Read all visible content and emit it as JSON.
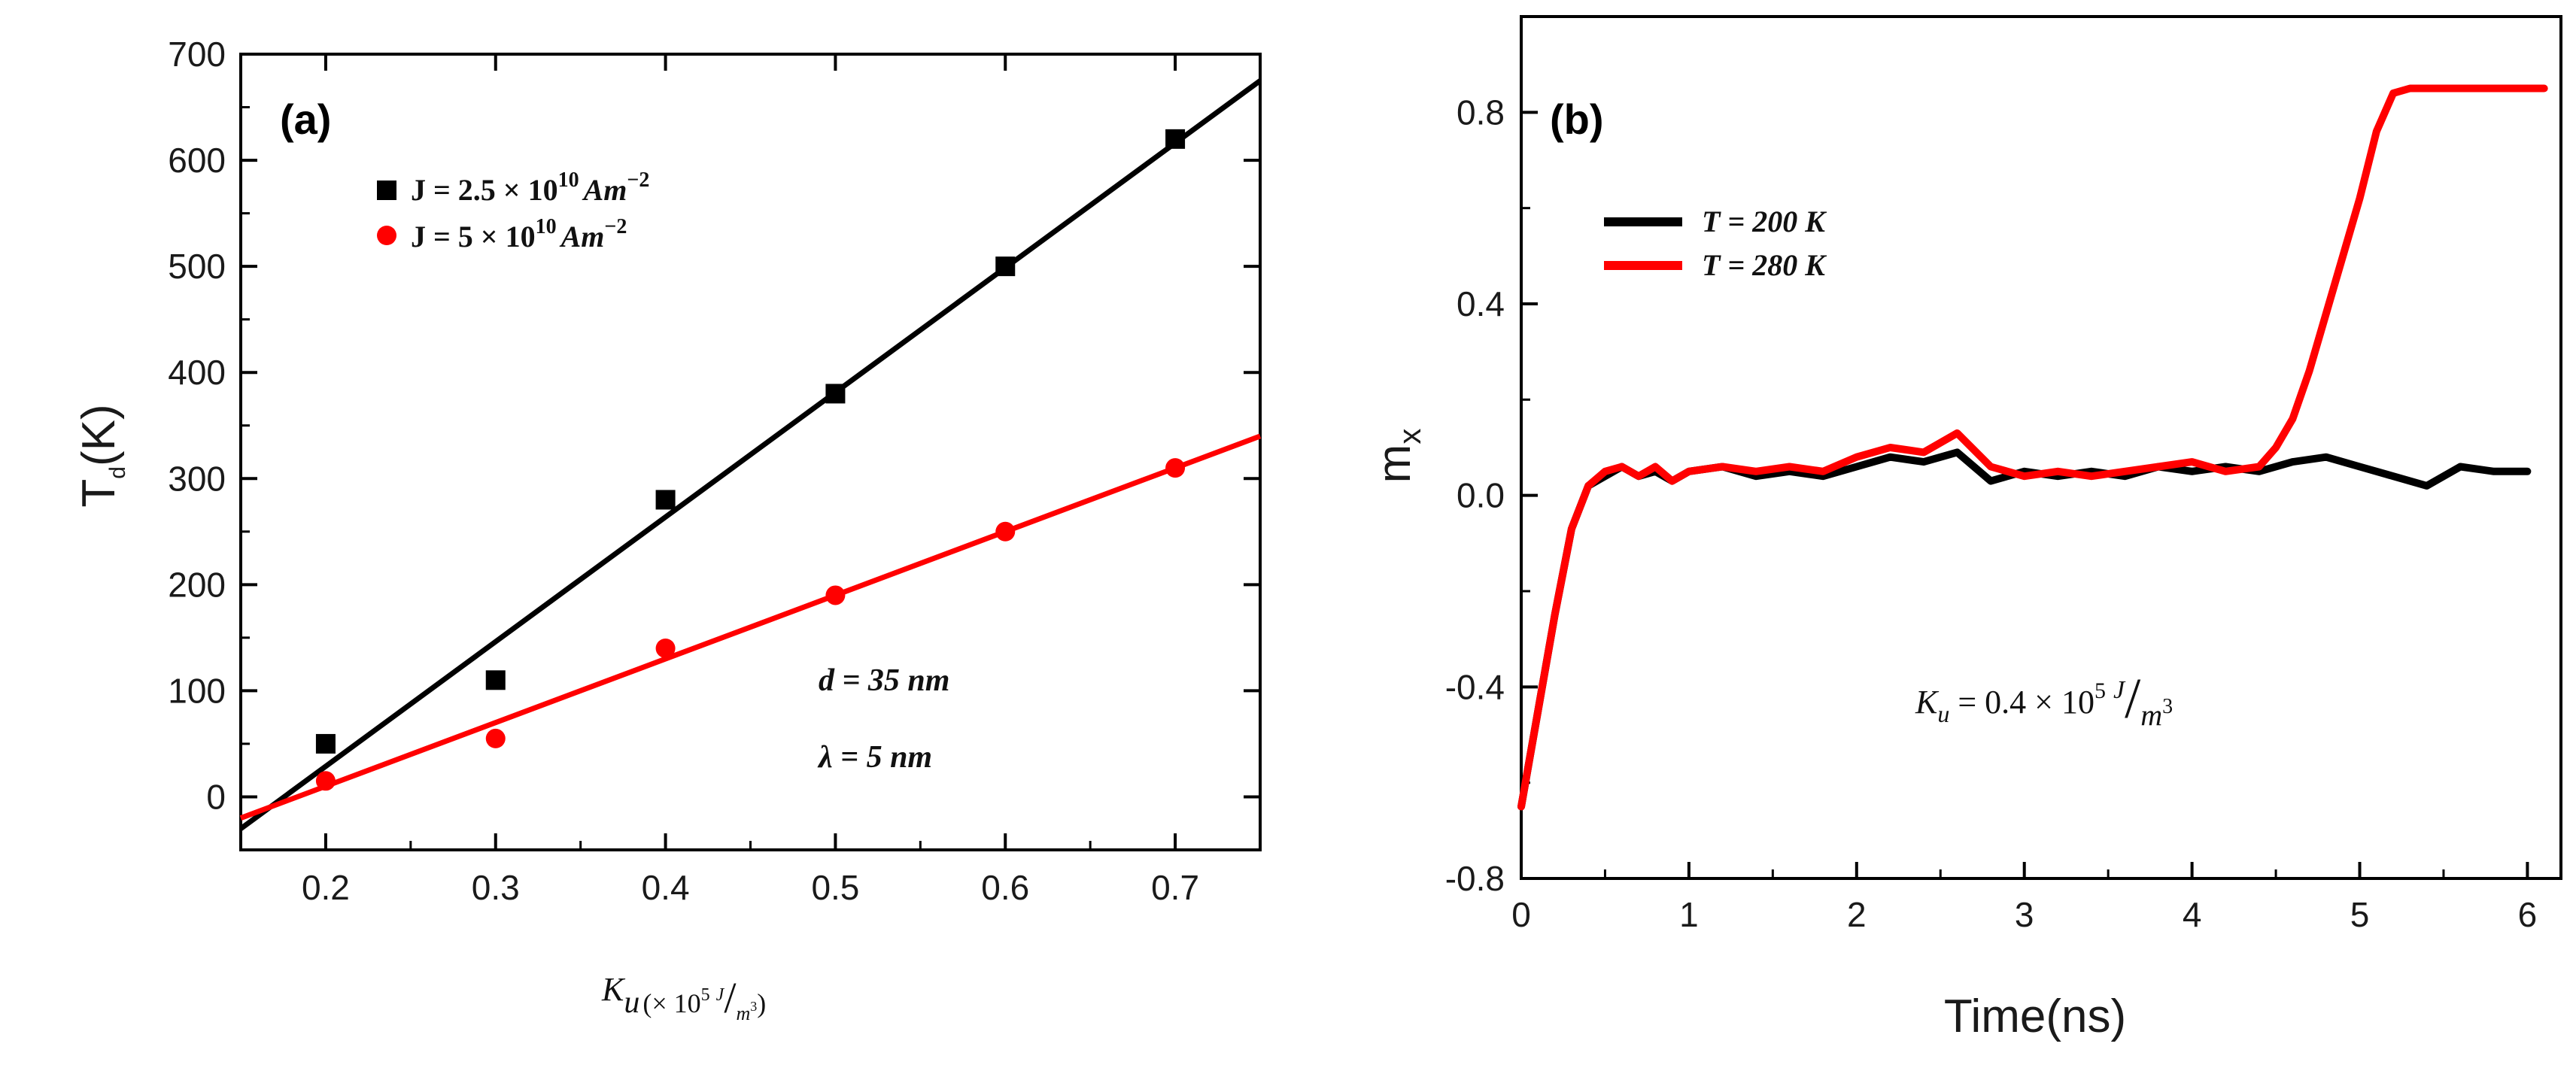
{
  "chart_data": [
    {
      "panel": "(a)",
      "type": "scatter",
      "ylabel_main": "T",
      "ylabel_sub": "d",
      "ylabel_tail": "(K)",
      "xlabel_main": "K",
      "xlabel_sub": "u",
      "xlabel_units": "(× 10",
      "xlabel_exp": "5",
      "xlabel_num": "J",
      "xlabel_slash": "/",
      "xlabel_den": "m",
      "xlabel_den_exp": "3",
      "xlabel_close": ")",
      "xlim": [
        0.15,
        0.75
      ],
      "ylim": [
        -50,
        700
      ],
      "xticks": [
        0.2,
        0.3,
        0.4,
        0.5,
        0.6,
        0.7
      ],
      "xtick_labels": [
        "0.2",
        "0.3",
        "0.4",
        "0.5",
        "0.6",
        "0.7"
      ],
      "yticks": [
        0,
        100,
        200,
        300,
        400,
        500,
        600,
        700
      ],
      "ytick_labels": [
        "0",
        "100",
        "200",
        "300",
        "400",
        "500",
        "600",
        "700"
      ],
      "series": [
        {
          "name": "J = 2.5 × 10^10 Am^-2",
          "legend_prefix": "J = 2.5 × 10",
          "legend_exp": "10",
          "legend_unit": "Am",
          "legend_unit_exp": "−2",
          "color": "#000000",
          "marker": "square",
          "x": [
            0.2,
            0.3,
            0.4,
            0.5,
            0.6,
            0.7
          ],
          "y": [
            50,
            110,
            280,
            380,
            500,
            620
          ],
          "fit": {
            "x": [
              0.15,
              0.75
            ],
            "y": [
              -30,
              675
            ]
          }
        },
        {
          "name": "J = 5 × 10^10 Am^-2",
          "legend_prefix": "J = 5 × 10",
          "legend_exp": "10",
          "legend_unit": "Am",
          "legend_unit_exp": "−2",
          "color": "#ff0000",
          "marker": "circle",
          "x": [
            0.2,
            0.3,
            0.4,
            0.5,
            0.6,
            0.7
          ],
          "y": [
            15,
            55,
            140,
            190,
            250,
            310
          ],
          "fit": {
            "x": [
              0.15,
              0.75
            ],
            "y": [
              -20,
              340
            ]
          }
        }
      ],
      "annotations": [
        "d = 35 nm",
        "λ = 5 nm"
      ]
    },
    {
      "panel": "(b)",
      "type": "line",
      "ylabel_main": "m",
      "ylabel_sub": "x",
      "xlabel": "Time(ns)",
      "xlim": [
        0,
        6.2
      ],
      "ylim": [
        -0.8,
        1.0
      ],
      "xticks": [
        0,
        1,
        2,
        3,
        4,
        5,
        6
      ],
      "xtick_labels": [
        "0",
        "1",
        "2",
        "3",
        "4",
        "5",
        "6"
      ],
      "yticks": [
        -0.8,
        -0.4,
        0.0,
        0.4,
        0.8
      ],
      "ytick_labels": [
        "-0.8",
        "-0.4",
        "0.0",
        "0.4",
        "0.8"
      ],
      "series": [
        {
          "name": "T = 200 K",
          "color": "#000000",
          "x": [
            0,
            0.1,
            0.2,
            0.3,
            0.4,
            0.5,
            0.6,
            0.7,
            0.8,
            0.9,
            1.0,
            1.2,
            1.4,
            1.6,
            1.8,
            2.0,
            2.2,
            2.4,
            2.6,
            2.8,
            3.0,
            3.2,
            3.4,
            3.6,
            3.8,
            4.0,
            4.2,
            4.4,
            4.6,
            4.8,
            5.0,
            5.2,
            5.4,
            5.6,
            5.8,
            6.0
          ],
          "y": [
            -0.65,
            -0.45,
            -0.25,
            -0.07,
            0.02,
            0.04,
            0.06,
            0.04,
            0.05,
            0.03,
            0.05,
            0.06,
            0.04,
            0.05,
            0.04,
            0.06,
            0.08,
            0.07,
            0.09,
            0.03,
            0.05,
            0.04,
            0.05,
            0.04,
            0.06,
            0.05,
            0.06,
            0.05,
            0.07,
            0.08,
            0.06,
            0.04,
            0.02,
            0.06,
            0.05,
            0.05
          ]
        },
        {
          "name": "T = 280 K",
          "color": "#ff0000",
          "x": [
            0,
            0.1,
            0.2,
            0.3,
            0.4,
            0.5,
            0.6,
            0.7,
            0.8,
            0.9,
            1.0,
            1.2,
            1.4,
            1.6,
            1.8,
            2.0,
            2.2,
            2.4,
            2.6,
            2.8,
            3.0,
            3.2,
            3.4,
            3.6,
            3.8,
            4.0,
            4.2,
            4.4,
            4.5,
            4.6,
            4.7,
            4.8,
            4.9,
            5.0,
            5.1,
            5.2,
            5.3,
            5.5,
            5.7,
            5.9,
            6.1
          ],
          "y": [
            -0.65,
            -0.45,
            -0.25,
            -0.07,
            0.02,
            0.05,
            0.06,
            0.04,
            0.06,
            0.03,
            0.05,
            0.06,
            0.05,
            0.06,
            0.05,
            0.08,
            0.1,
            0.09,
            0.13,
            0.06,
            0.04,
            0.05,
            0.04,
            0.05,
            0.06,
            0.07,
            0.05,
            0.06,
            0.1,
            0.16,
            0.26,
            0.38,
            0.5,
            0.62,
            0.76,
            0.84,
            0.85,
            0.85,
            0.85,
            0.85,
            0.85
          ]
        }
      ],
      "annotation": {
        "main": "K",
        "sub": "u",
        "text": " = 0.4 × 10",
        "exp": "5",
        "num": "J",
        "slash": "/",
        "den": "m",
        "den_exp": "3"
      }
    }
  ]
}
